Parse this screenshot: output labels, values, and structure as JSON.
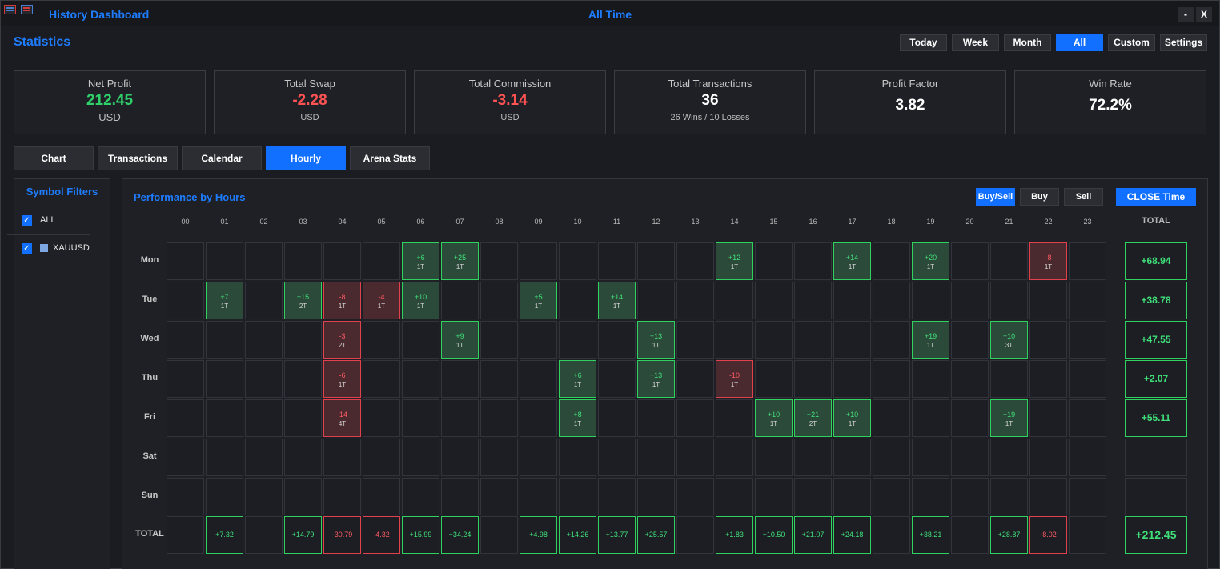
{
  "window": {
    "title": "History Dashboard",
    "period_title": "All Time",
    "minimize_label": "-",
    "close_label": "X"
  },
  "section_title": "Statistics",
  "period_buttons": [
    "Today",
    "Week",
    "Month",
    "All",
    "Custom",
    "Settings"
  ],
  "active_period": "All",
  "cards": [
    {
      "label": "Net Profit",
      "value": "212.45",
      "sub": "USD",
      "color": "#2fcf6a"
    },
    {
      "label": "Total Swap",
      "value": "-2.28",
      "sub": "USD",
      "color": "#ff5252"
    },
    {
      "label": "Total Commission",
      "value": "-3.14",
      "sub": "USD",
      "color": "#ff5252"
    },
    {
      "label": "Total Transactions",
      "value": "36",
      "sub": "26 Wins / 10 Losses",
      "color": "#ffffff"
    },
    {
      "label": "Profit Factor",
      "value": "3.82",
      "sub": "",
      "color": "#ffffff"
    },
    {
      "label": "Win Rate",
      "value": "72.2%",
      "sub": "",
      "color": "#ffffff"
    }
  ],
  "tabs": [
    "Chart",
    "Transactions",
    "Calendar",
    "Hourly",
    "Arena Stats"
  ],
  "active_tab": "Hourly",
  "filters": {
    "title": "Symbol Filters",
    "items": [
      {
        "label": "ALL",
        "checked": true,
        "swatch": ""
      },
      {
        "label": "XAUUSD",
        "checked": true,
        "swatch": "#7ea6e0"
      }
    ]
  },
  "hourly": {
    "title": "Performance by Hours",
    "mode_buttons": [
      "Buy/Sell",
      "Buy",
      "Sell",
      "CLOSE Time"
    ],
    "active_modes": [
      "Buy/Sell",
      "CLOSE Time"
    ],
    "hours": [
      "00",
      "01",
      "02",
      "03",
      "04",
      "05",
      "06",
      "07",
      "08",
      "09",
      "10",
      "11",
      "12",
      "13",
      "14",
      "15",
      "16",
      "17",
      "18",
      "19",
      "20",
      "21",
      "22",
      "23"
    ],
    "total_label": "TOTAL",
    "days": [
      {
        "label": "Mon",
        "row_total": "+68.94",
        "cells": [
          {
            "h": 6,
            "value": "+6",
            "trades": "1T"
          },
          {
            "h": 7,
            "value": "+25",
            "trades": "1T"
          },
          {
            "h": 14,
            "value": "+12",
            "trades": "1T"
          },
          {
            "h": 17,
            "value": "+14",
            "trades": "1T"
          },
          {
            "h": 19,
            "value": "+20",
            "trades": "1T"
          },
          {
            "h": 22,
            "value": "-8",
            "trades": "1T"
          }
        ]
      },
      {
        "label": "Tue",
        "row_total": "+38.78",
        "cells": [
          {
            "h": 1,
            "value": "+7",
            "trades": "1T"
          },
          {
            "h": 3,
            "value": "+15",
            "trades": "2T"
          },
          {
            "h": 4,
            "value": "-8",
            "trades": "1T"
          },
          {
            "h": 5,
            "value": "-4",
            "trades": "1T"
          },
          {
            "h": 6,
            "value": "+10",
            "trades": "1T"
          },
          {
            "h": 9,
            "value": "+5",
            "trades": "1T"
          },
          {
            "h": 11,
            "value": "+14",
            "trades": "1T"
          }
        ]
      },
      {
        "label": "Wed",
        "row_total": "+47.55",
        "cells": [
          {
            "h": 4,
            "value": "-3",
            "trades": "2T"
          },
          {
            "h": 7,
            "value": "+9",
            "trades": "1T"
          },
          {
            "h": 12,
            "value": "+13",
            "trades": "1T"
          },
          {
            "h": 19,
            "value": "+19",
            "trades": "1T"
          },
          {
            "h": 21,
            "value": "+10",
            "trades": "3T"
          }
        ]
      },
      {
        "label": "Thu",
        "row_total": "+2.07",
        "cells": [
          {
            "h": 4,
            "value": "-6",
            "trades": "1T"
          },
          {
            "h": 10,
            "value": "+6",
            "trades": "1T"
          },
          {
            "h": 12,
            "value": "+13",
            "trades": "1T"
          },
          {
            "h": 14,
            "value": "-10",
            "trades": "1T"
          }
        ]
      },
      {
        "label": "Fri",
        "row_total": "+55.11",
        "cells": [
          {
            "h": 4,
            "value": "-14",
            "trades": "4T"
          },
          {
            "h": 10,
            "value": "+8",
            "trades": "1T"
          },
          {
            "h": 15,
            "value": "+10",
            "trades": "1T"
          },
          {
            "h": 16,
            "value": "+21",
            "trades": "2T"
          },
          {
            "h": 17,
            "value": "+10",
            "trades": "1T"
          },
          {
            "h": 21,
            "value": "+19",
            "trades": "1T"
          }
        ]
      },
      {
        "label": "Sat",
        "row_total": "",
        "cells": []
      },
      {
        "label": "Sun",
        "row_total": "",
        "cells": []
      }
    ],
    "column_totals": {
      "1": "+7.32",
      "3": "+14.79",
      "4": "-30.79",
      "5": "-4.32",
      "6": "+15.99",
      "7": "+34.24",
      "9": "+4.98",
      "10": "+14.26",
      "11": "+13.77",
      "12": "+25.57",
      "14": "+1.83",
      "15": "+10.50",
      "16": "+21.07",
      "17": "+24.18",
      "19": "+38.21",
      "21": "+28.87",
      "22": "-8.02"
    },
    "grand_total": "+212.45"
  }
}
